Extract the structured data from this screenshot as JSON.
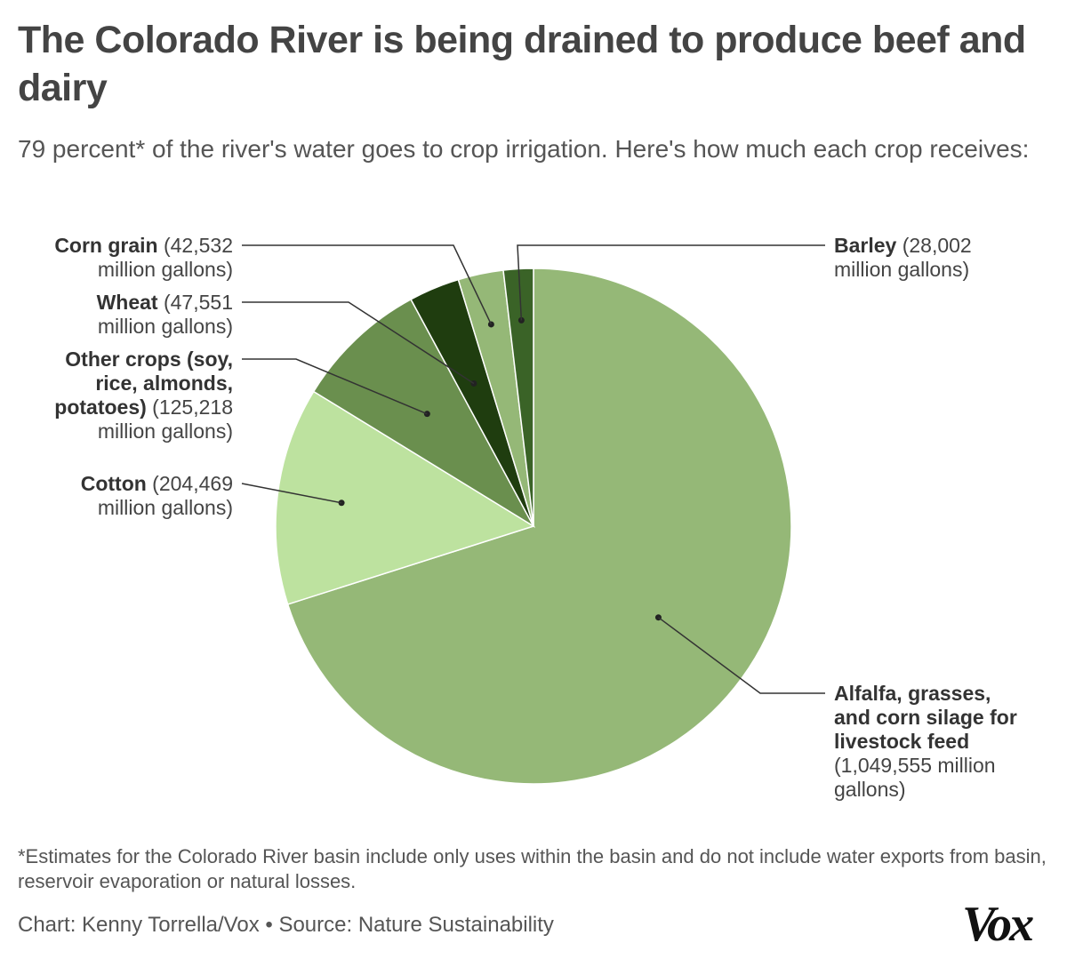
{
  "title": "The Colorado River is being drained to produce beef and dairy",
  "subtitle": "79 percent* of the river's water goes to crop irrigation. Here's how much each crop receives:",
  "footnote": "*Estimates for the Colorado River basin include only uses within the basin and do not include water exports from basin, reservoir evaporation or natural losses.",
  "credit": "Chart: Kenny Torrella/Vox • Source: Nature Sustainability",
  "logo": "Vox",
  "chart_data": {
    "type": "pie",
    "unit": "million gallons",
    "slices": [
      {
        "name": "Alfalfa, grasses, and corn silage for livestock feed",
        "value": 1049555,
        "value_label": "(1,049,555 million gallons)",
        "color": "#95b877"
      },
      {
        "name": "Cotton",
        "value": 204469,
        "value_label": "(204,469 million gallons)",
        "color": "#bde29f"
      },
      {
        "name": "Other crops (soy, rice, almonds, potatoes)",
        "value": 125218,
        "value_label": "(125,218 million gallons)",
        "color": "#6a8f4e"
      },
      {
        "name": "Wheat",
        "value": 47551,
        "value_label": "(47,551 million gallons)",
        "color": "#1f3d0f"
      },
      {
        "name": "Corn grain",
        "value": 42532,
        "value_label": "(42,532 million gallons)",
        "color": "#95b877"
      },
      {
        "name": "Barley",
        "value": 28002,
        "value_label": "(28,002 million gallons)",
        "color": "#3a6327"
      }
    ]
  }
}
